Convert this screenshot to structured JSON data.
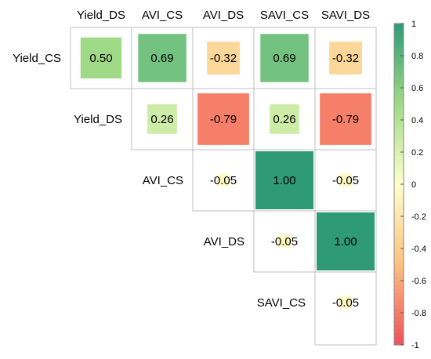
{
  "chart_data": {
    "type": "heatmap",
    "title": "",
    "variables": [
      "Yield_CS",
      "Yield_DS",
      "AVI_CS",
      "AVI_DS",
      "SAVI_CS",
      "SAVI_DS"
    ],
    "column_labels": [
      "Yield_DS",
      "AVI_CS",
      "AVI_DS",
      "SAVI_CS",
      "SAVI_DS"
    ],
    "row_labels": [
      "Yield_CS",
      "Yield_DS",
      "AVI_CS",
      "AVI_DS",
      "SAVI_CS"
    ],
    "layout": "upper-triangle",
    "cells": [
      {
        "row": "Yield_CS",
        "col": "Yield_DS",
        "value": 0.5,
        "label": "0.50"
      },
      {
        "row": "Yield_CS",
        "col": "AVI_CS",
        "value": 0.69,
        "label": "0.69"
      },
      {
        "row": "Yield_CS",
        "col": "AVI_DS",
        "value": -0.32,
        "label": "-0.32"
      },
      {
        "row": "Yield_CS",
        "col": "SAVI_CS",
        "value": 0.69,
        "label": "0.69"
      },
      {
        "row": "Yield_CS",
        "col": "SAVI_DS",
        "value": -0.32,
        "label": "-0.32"
      },
      {
        "row": "Yield_DS",
        "col": "AVI_CS",
        "value": 0.26,
        "label": "0.26"
      },
      {
        "row": "Yield_DS",
        "col": "AVI_DS",
        "value": -0.79,
        "label": "-0.79"
      },
      {
        "row": "Yield_DS",
        "col": "SAVI_CS",
        "value": 0.26,
        "label": "0.26"
      },
      {
        "row": "Yield_DS",
        "col": "SAVI_DS",
        "value": -0.79,
        "label": "-0.79"
      },
      {
        "row": "AVI_CS",
        "col": "AVI_DS",
        "value": -0.05,
        "label": "-0.05"
      },
      {
        "row": "AVI_CS",
        "col": "SAVI_CS",
        "value": 1.0,
        "label": "1.00"
      },
      {
        "row": "AVI_CS",
        "col": "SAVI_DS",
        "value": -0.05,
        "label": "-0.05"
      },
      {
        "row": "AVI_DS",
        "col": "SAVI_CS",
        "value": -0.05,
        "label": "-0.05"
      },
      {
        "row": "AVI_DS",
        "col": "SAVI_DS",
        "value": 1.0,
        "label": "1.00"
      },
      {
        "row": "SAVI_CS",
        "col": "SAVI_DS",
        "value": -0.05,
        "label": "-0.05"
      }
    ],
    "colorbar": {
      "range": [
        -1,
        1
      ],
      "ticks": [
        1,
        0.8,
        0.6,
        0.4,
        0.2,
        0,
        -0.2,
        -0.4,
        -0.6,
        -0.8,
        -1
      ],
      "tick_labels": [
        "1",
        "0.8",
        "0.6",
        "0.4",
        "0.2",
        "0",
        "-0.2",
        "-0.4",
        "-0.6",
        "-0.8",
        "-1"
      ],
      "placement": "right"
    },
    "colors": {
      "negative": "#F0505A",
      "mid_negative": "#FBC07E",
      "neutral": "#FFFFCC",
      "mid_positive": "#9FDA86",
      "positive": "#2F9A76",
      "grid": "#BFBFBF"
    },
    "grid": true
  }
}
